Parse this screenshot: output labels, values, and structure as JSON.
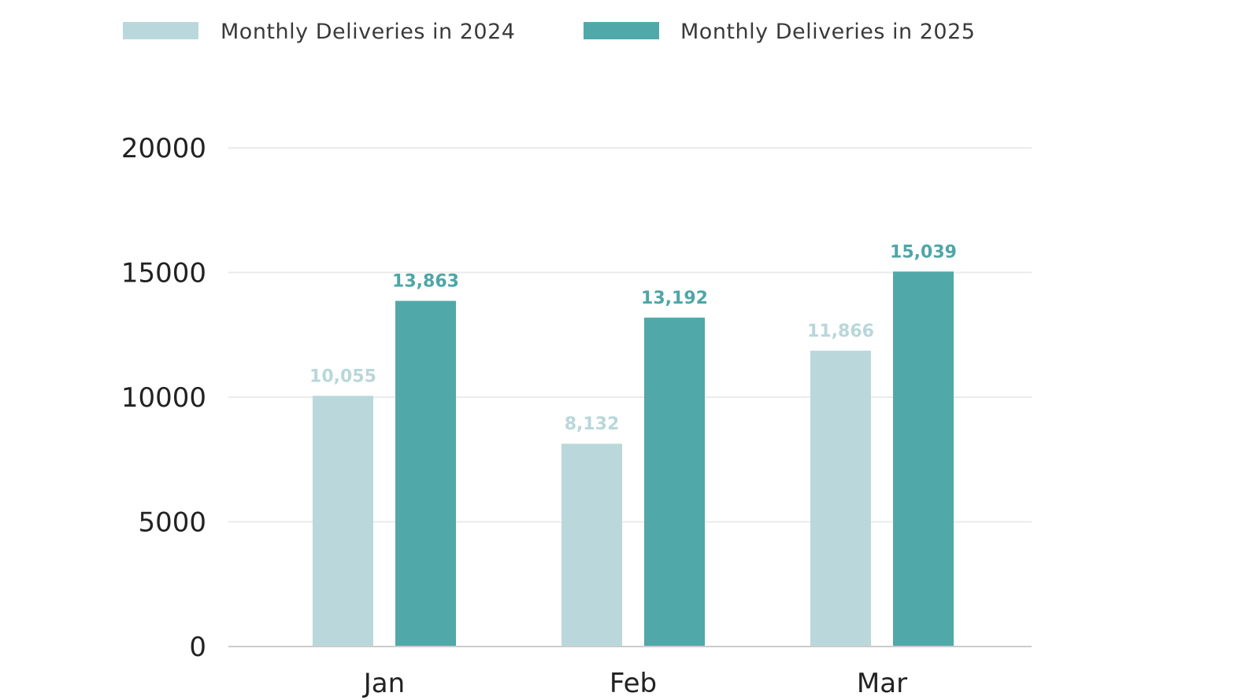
{
  "chart_data": {
    "type": "bar",
    "categories": [
      "Jan",
      "Feb",
      "Mar"
    ],
    "series": [
      {
        "name": "Monthly Deliveries in 2024",
        "values": [
          10055,
          8132,
          11866
        ],
        "labels": [
          "10,055",
          "8,132",
          "11,866"
        ],
        "color": "#bad8db",
        "label_color": "#b9d7da"
      },
      {
        "name": "Monthly Deliveries in 2025",
        "values": [
          13863,
          13192,
          15039
        ],
        "labels": [
          "13,863",
          "13,192",
          "15,039"
        ],
        "color": "#50a8a9",
        "label_color": "#4ea6a7"
      }
    ],
    "y_ticks": [
      0,
      5000,
      10000,
      15000,
      20000
    ],
    "y_tick_labels": [
      "0",
      "5000",
      "10000",
      "15000",
      "20000"
    ],
    "ylim": [
      0,
      20000
    ],
    "grid": true,
    "legend_position": "top",
    "title": "",
    "xlabel": "",
    "ylabel": "",
    "grid_color": "#ebebeb",
    "axis_color": "#cccccc"
  }
}
